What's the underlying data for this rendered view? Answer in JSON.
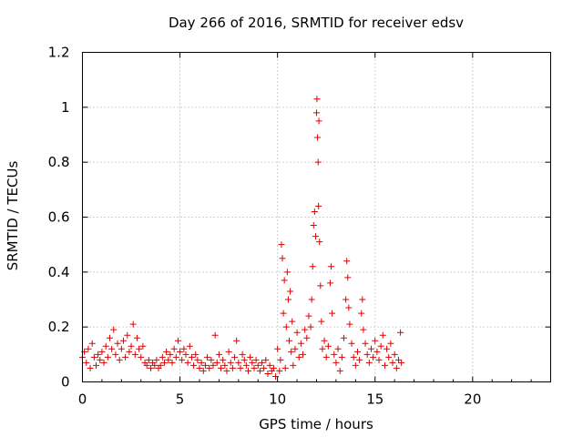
{
  "chart_data": {
    "type": "scatter",
    "title": "Day 266 of 2016, SRMTID for receiver edsv",
    "xlabel": "GPS time / hours",
    "ylabel": "SRMTID / TECUs",
    "xlim": [
      0,
      24
    ],
    "ylim": [
      0,
      1.2
    ],
    "xticks": [
      0,
      5,
      10,
      15,
      20
    ],
    "xtick_labels": [
      "0",
      "5",
      "10",
      "15",
      "20"
    ],
    "yticks": [
      0,
      0.2,
      0.4,
      0.6,
      0.8,
      1.0,
      1.2
    ],
    "ytick_labels": [
      "0",
      "0.2",
      "0.4",
      "0.6",
      "0.8",
      "1",
      "1.2"
    ],
    "grid": true,
    "marker": "plus",
    "color": "#e00000",
    "series": [
      {
        "name": "edsv",
        "points": [
          [
            0.0,
            0.09
          ],
          [
            0.1,
            0.11
          ],
          [
            0.2,
            0.07
          ],
          [
            0.3,
            0.12
          ],
          [
            0.4,
            0.05
          ],
          [
            0.5,
            0.14
          ],
          [
            0.6,
            0.09
          ],
          [
            0.7,
            0.06
          ],
          [
            0.8,
            0.1
          ],
          [
            0.9,
            0.08
          ],
          [
            1.0,
            0.11
          ],
          [
            1.1,
            0.07
          ],
          [
            1.2,
            0.13
          ],
          [
            1.3,
            0.09
          ],
          [
            1.4,
            0.16
          ],
          [
            1.5,
            0.12
          ],
          [
            1.6,
            0.19
          ],
          [
            1.7,
            0.1
          ],
          [
            1.8,
            0.14
          ],
          [
            1.9,
            0.08
          ],
          [
            2.0,
            0.12
          ],
          [
            2.1,
            0.15
          ],
          [
            2.2,
            0.09
          ],
          [
            2.3,
            0.17
          ],
          [
            2.4,
            0.11
          ],
          [
            2.5,
            0.13
          ],
          [
            2.6,
            0.21
          ],
          [
            2.7,
            0.1
          ],
          [
            2.8,
            0.16
          ],
          [
            2.9,
            0.12
          ],
          [
            3.0,
            0.09
          ],
          [
            3.1,
            0.13
          ],
          [
            3.2,
            0.07
          ],
          [
            3.3,
            0.06
          ],
          [
            3.4,
            0.08
          ],
          [
            3.5,
            0.05
          ],
          [
            3.6,
            0.07
          ],
          [
            3.7,
            0.06
          ],
          [
            3.8,
            0.08
          ],
          [
            3.9,
            0.05
          ],
          [
            4.0,
            0.06
          ],
          [
            4.1,
            0.09
          ],
          [
            4.2,
            0.07
          ],
          [
            4.3,
            0.11
          ],
          [
            4.4,
            0.08
          ],
          [
            4.5,
            0.1
          ],
          [
            4.6,
            0.07
          ],
          [
            4.7,
            0.12
          ],
          [
            4.8,
            0.09
          ],
          [
            4.9,
            0.15
          ],
          [
            5.0,
            0.11
          ],
          [
            5.1,
            0.08
          ],
          [
            5.2,
            0.12
          ],
          [
            5.3,
            0.1
          ],
          [
            5.4,
            0.07
          ],
          [
            5.5,
            0.13
          ],
          [
            5.6,
            0.09
          ],
          [
            5.7,
            0.06
          ],
          [
            5.8,
            0.1
          ],
          [
            5.9,
            0.08
          ],
          [
            6.0,
            0.05
          ],
          [
            6.1,
            0.07
          ],
          [
            6.2,
            0.04
          ],
          [
            6.3,
            0.06
          ],
          [
            6.4,
            0.09
          ],
          [
            6.5,
            0.05
          ],
          [
            6.6,
            0.08
          ],
          [
            6.7,
            0.06
          ],
          [
            6.8,
            0.17
          ],
          [
            6.9,
            0.07
          ],
          [
            7.0,
            0.1
          ],
          [
            7.1,
            0.05
          ],
          [
            7.2,
            0.08
          ],
          [
            7.3,
            0.06
          ],
          [
            7.4,
            0.04
          ],
          [
            7.5,
            0.11
          ],
          [
            7.6,
            0.07
          ],
          [
            7.7,
            0.05
          ],
          [
            7.8,
            0.09
          ],
          [
            7.9,
            0.15
          ],
          [
            8.0,
            0.07
          ],
          [
            8.1,
            0.05
          ],
          [
            8.2,
            0.1
          ],
          [
            8.3,
            0.08
          ],
          [
            8.4,
            0.06
          ],
          [
            8.5,
            0.04
          ],
          [
            8.6,
            0.09
          ],
          [
            8.7,
            0.07
          ],
          [
            8.8,
            0.05
          ],
          [
            8.9,
            0.08
          ],
          [
            9.0,
            0.06
          ],
          [
            9.1,
            0.04
          ],
          [
            9.2,
            0.07
          ],
          [
            9.3,
            0.05
          ],
          [
            9.4,
            0.08
          ],
          [
            9.5,
            0.03
          ],
          [
            9.6,
            0.06
          ],
          [
            9.7,
            0.04
          ],
          [
            9.8,
            0.05
          ],
          [
            9.9,
            0.02
          ],
          [
            10.0,
            0.12
          ],
          [
            10.1,
            0.04
          ],
          [
            10.15,
            0.08
          ],
          [
            10.2,
            0.5
          ],
          [
            10.25,
            0.45
          ],
          [
            10.3,
            0.25
          ],
          [
            10.35,
            0.37
          ],
          [
            10.4,
            0.05
          ],
          [
            10.45,
            0.2
          ],
          [
            10.5,
            0.4
          ],
          [
            10.55,
            0.3
          ],
          [
            10.6,
            0.15
          ],
          [
            10.65,
            0.33
          ],
          [
            10.7,
            0.11
          ],
          [
            10.75,
            0.22
          ],
          [
            10.8,
            0.06
          ],
          [
            10.9,
            0.12
          ],
          [
            11.0,
            0.18
          ],
          [
            11.1,
            0.09
          ],
          [
            11.2,
            0.14
          ],
          [
            11.3,
            0.1
          ],
          [
            11.4,
            0.19
          ],
          [
            11.5,
            0.16
          ],
          [
            11.6,
            0.24
          ],
          [
            11.7,
            0.2
          ],
          [
            11.75,
            0.3
          ],
          [
            11.8,
            0.42
          ],
          [
            11.85,
            0.57
          ],
          [
            11.9,
            0.62
          ],
          [
            11.95,
            0.53
          ],
          [
            12.0,
            0.98
          ],
          [
            12.02,
            1.03
          ],
          [
            12.05,
            0.89
          ],
          [
            12.08,
            0.8
          ],
          [
            12.1,
            0.64
          ],
          [
            12.12,
            0.95
          ],
          [
            12.15,
            0.51
          ],
          [
            12.2,
            0.35
          ],
          [
            12.25,
            0.22
          ],
          [
            12.3,
            0.12
          ],
          [
            12.4,
            0.15
          ],
          [
            12.5,
            0.09
          ],
          [
            12.6,
            0.13
          ],
          [
            12.7,
            0.36
          ],
          [
            12.75,
            0.42
          ],
          [
            12.8,
            0.25
          ],
          [
            12.9,
            0.1
          ],
          [
            13.0,
            0.07
          ],
          [
            13.1,
            0.12
          ],
          [
            13.2,
            0.04
          ],
          [
            13.3,
            0.09
          ],
          [
            13.4,
            0.16
          ],
          [
            13.5,
            0.3
          ],
          [
            13.55,
            0.44
          ],
          [
            13.6,
            0.38
          ],
          [
            13.65,
            0.27
          ],
          [
            13.7,
            0.21
          ],
          [
            13.8,
            0.14
          ],
          [
            13.9,
            0.09
          ],
          [
            14.0,
            0.06
          ],
          [
            14.1,
            0.11
          ],
          [
            14.2,
            0.08
          ],
          [
            14.3,
            0.25
          ],
          [
            14.35,
            0.3
          ],
          [
            14.4,
            0.19
          ],
          [
            14.5,
            0.14
          ],
          [
            14.6,
            0.1
          ],
          [
            14.7,
            0.07
          ],
          [
            14.8,
            0.12
          ],
          [
            14.9,
            0.09
          ],
          [
            15.0,
            0.15
          ],
          [
            15.1,
            0.11
          ],
          [
            15.2,
            0.08
          ],
          [
            15.3,
            0.13
          ],
          [
            15.4,
            0.17
          ],
          [
            15.5,
            0.06
          ],
          [
            15.6,
            0.12
          ],
          [
            15.7,
            0.09
          ],
          [
            15.8,
            0.14
          ],
          [
            15.9,
            0.07
          ],
          [
            16.0,
            0.1
          ],
          [
            16.1,
            0.05
          ],
          [
            16.2,
            0.08
          ],
          [
            16.3,
            0.18
          ],
          [
            16.35,
            0.07
          ]
        ]
      }
    ]
  }
}
